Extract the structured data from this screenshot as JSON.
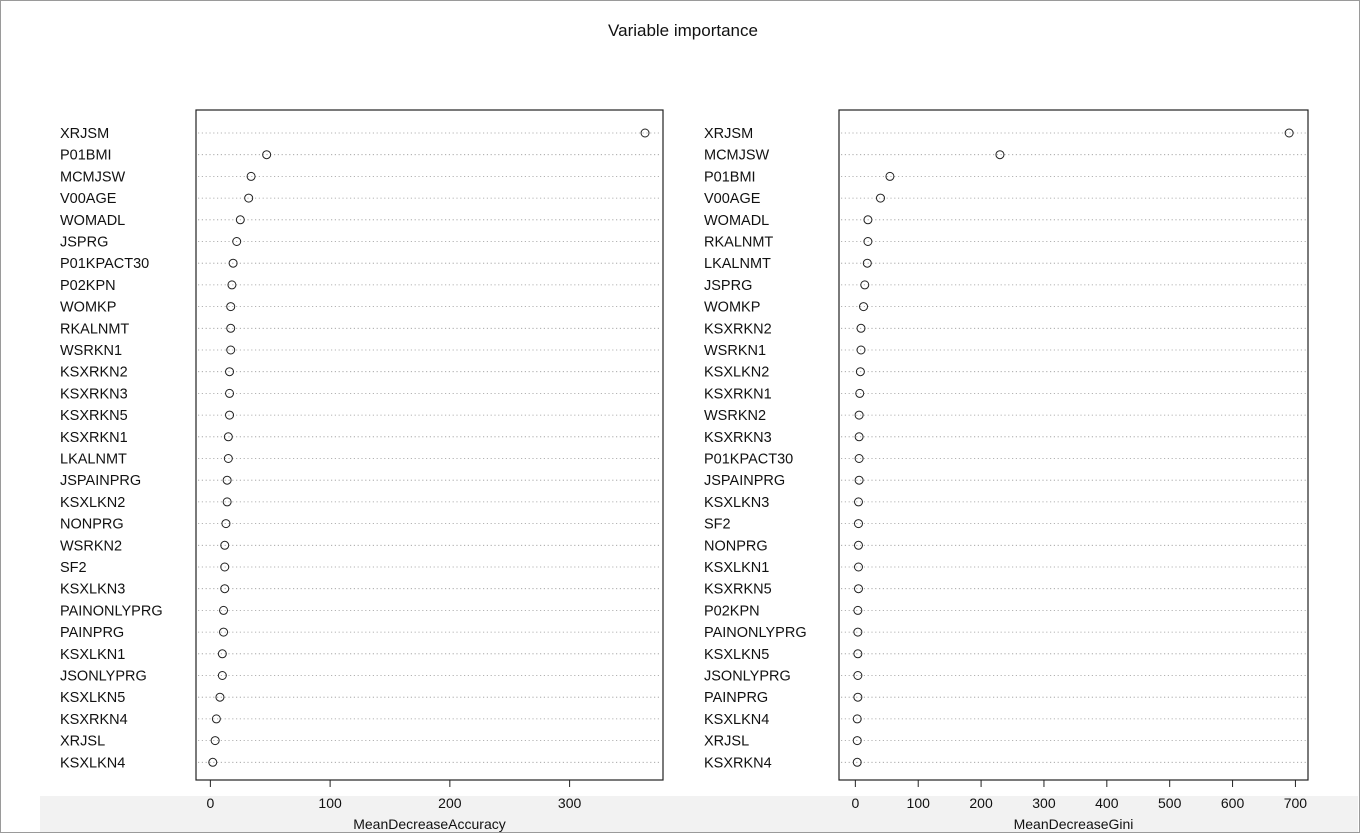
{
  "title": "Variable importance",
  "chart_data": [
    {
      "type": "scatter",
      "subtype": "dotchart",
      "xlabel": "MeanDecreaseAccuracy",
      "xticks": [
        0,
        100,
        200,
        300
      ],
      "xlim": [
        -12,
        378
      ],
      "grid": "dotted horizontal",
      "labels": [
        "XRJSM",
        "P01BMI",
        "MCMJSW",
        "V00AGE",
        "WOMADL",
        "JSPRG",
        "P01KPACT30",
        "P02KPN",
        "WOMKP",
        "RKALNMT",
        "WSRKN1",
        "KSXRKN2",
        "KSXRKN3",
        "KSXRKN5",
        "KSXRKN1",
        "LKALNMT",
        "JSPAINPRG",
        "KSXLKN2",
        "NONPRG",
        "WSRKN2",
        "SF2",
        "KSXLKN3",
        "PAINONLYPRG",
        "PAINPRG",
        "KSXLKN1",
        "JSONLYPRG",
        "KSXLKN5",
        "KSXRKN4",
        "XRJSL",
        "KSXLKN4"
      ],
      "values": [
        363,
        47,
        34,
        32,
        25,
        22,
        19,
        18,
        17,
        17,
        17,
        16,
        16,
        16,
        15,
        15,
        14,
        14,
        13,
        12,
        12,
        12,
        11,
        11,
        10,
        10,
        8,
        5,
        4,
        2
      ]
    },
    {
      "type": "scatter",
      "subtype": "dotchart",
      "xlabel": "MeanDecreaseGini",
      "xticks": [
        0,
        100,
        200,
        300,
        400,
        500,
        600,
        700
      ],
      "xlim": [
        -26,
        720
      ],
      "grid": "dotted horizontal",
      "labels": [
        "XRJSM",
        "MCMJSW",
        "P01BMI",
        "V00AGE",
        "WOMADL",
        "RKALNMT",
        "LKALNMT",
        "JSPRG",
        "WOMKP",
        "KSXRKN2",
        "WSRKN1",
        "KSXLKN2",
        "KSXRKN1",
        "WSRKN2",
        "KSXRKN3",
        "P01KPACT30",
        "JSPAINPRG",
        "KSXLKN3",
        "SF2",
        "NONPRG",
        "KSXLKN1",
        "KSXRKN5",
        "P02KPN",
        "PAINONLYPRG",
        "KSXLKN5",
        "JSONLYPRG",
        "PAINPRG",
        "KSXLKN4",
        "XRJSL",
        "KSXRKN4"
      ],
      "values": [
        690,
        230,
        55,
        40,
        20,
        20,
        19,
        15,
        13,
        9,
        9,
        8,
        7,
        6,
        6,
        6,
        6,
        5,
        5,
        5,
        5,
        5,
        4,
        4,
        4,
        4,
        4,
        3,
        3,
        3
      ]
    }
  ]
}
